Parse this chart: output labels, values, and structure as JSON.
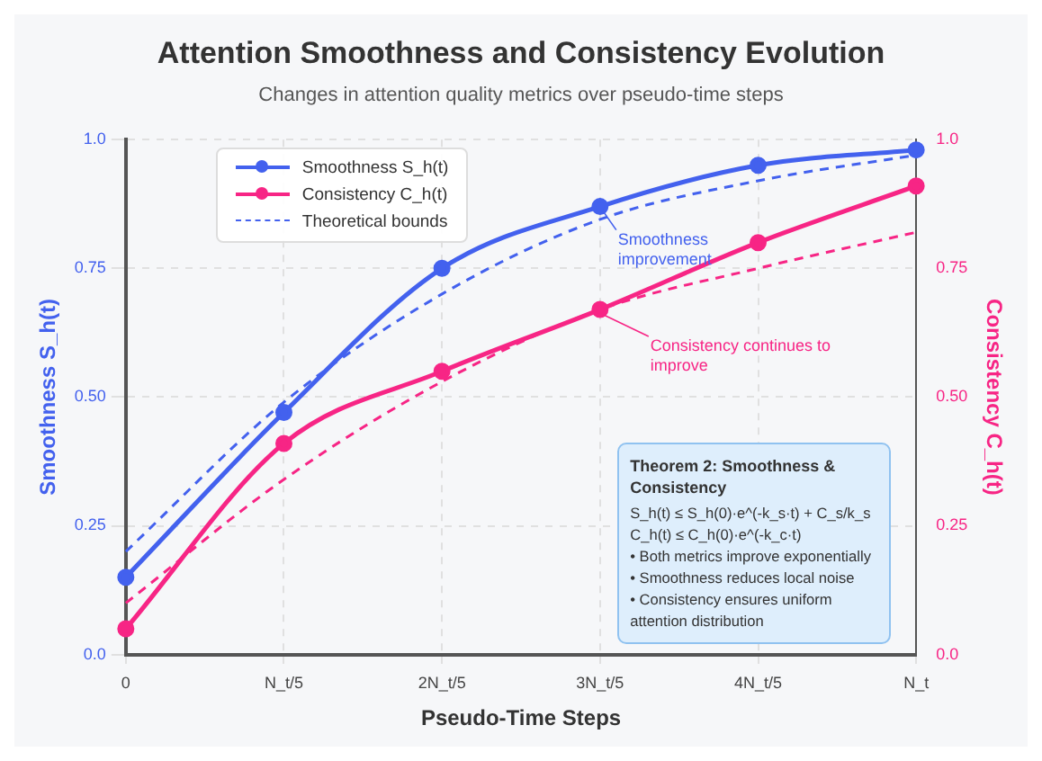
{
  "chart_data": {
    "type": "line",
    "title": "Attention Smoothness and Consistency Evolution",
    "subtitle": "Changes in attention quality metrics over pseudo-time steps",
    "xlabel": "Pseudo-Time Steps",
    "ylabel": "Smoothness S_h(t)",
    "y2label": "Consistency C_h(t)",
    "categories": [
      "0",
      "N_t/5",
      "2N_t/5",
      "3N_t/5",
      "4N_t/5",
      "N_t"
    ],
    "series": [
      {
        "name": "Smoothness S_h(t)",
        "color": "#4361ee",
        "values": [
          0.15,
          0.47,
          0.75,
          0.87,
          0.95,
          0.98
        ],
        "marker": "circle",
        "line_style": "solid"
      },
      {
        "name": "Consistency C_h(t)",
        "color": "#f72585",
        "values": [
          0.05,
          0.41,
          0.55,
          0.67,
          0.8,
          0.91
        ],
        "marker": "circle",
        "line_style": "solid",
        "axis": "y2"
      },
      {
        "name": "Theoretical bounds",
        "color": "#4361ee",
        "values": [
          0.2,
          0.49,
          0.7,
          0.845,
          0.92,
          0.97
        ],
        "marker": "none",
        "line_style": "dashed"
      },
      {
        "color": "#f72585",
        "values": [
          0.1,
          0.34,
          0.53,
          0.67,
          0.75,
          0.82
        ],
        "marker": "none",
        "line_style": "dashed",
        "axis": "y2"
      }
    ],
    "ylim": [
      0,
      1
    ],
    "yticks": [
      {
        "value": 0,
        "label": "0.0"
      },
      0.25,
      {
        "value": 0.5,
        "label": "0.50"
      },
      0.75,
      {
        "value": 1,
        "label": "1.0"
      }
    ],
    "y2lim": [
      0,
      1
    ],
    "y2ticks": [
      {
        "value": 0,
        "label": "0.0"
      },
      0.25,
      {
        "value": 0.5,
        "label": "0.50"
      },
      0.75,
      {
        "value": 1,
        "label": "1.0"
      }
    ],
    "grid": true,
    "legend": "top left",
    "annotations": [
      {
        "text": "Smoothness improvement",
        "x": "3N_t/5",
        "y": 0.87
      },
      {
        "text": "Consistency continues to improve",
        "x": "3N_t/5",
        "y": 0.67
      },
      "Theorem 2: Smoothness & Consistency\nS_h(t) ≤ S_h(0)·e^(-k_s·t) + C_s/k_s\nC_h(t) ≤ C_h(0)·e^(-k_c·t)\n• Both metrics improve exponentially\n• Smoothness reduces local noise\n• Consistency ensures uniform attention distribution"
    ]
  }
}
